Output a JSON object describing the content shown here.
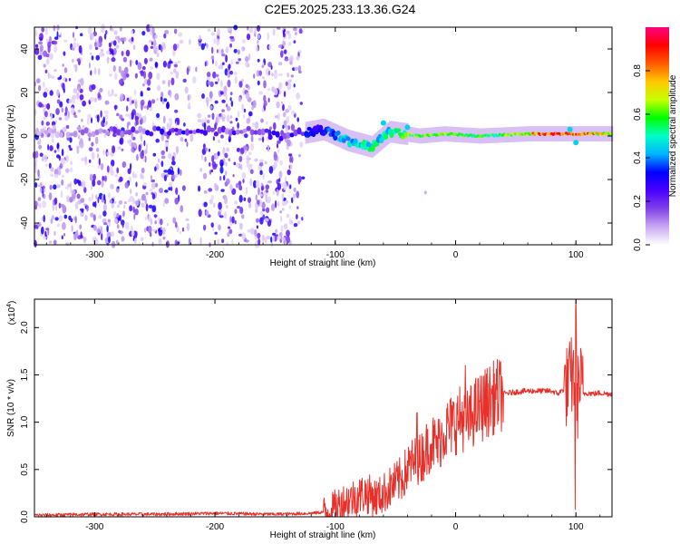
{
  "title": "C2E5.2025.233.13.36.G24",
  "chart_data": [
    {
      "type": "heatmap",
      "name": "spectrogram",
      "xlabel": "Height of straight line (km)",
      "ylabel": "Frequency (Hz)",
      "xlim": [
        -350,
        130
      ],
      "ylim": [
        -50,
        50
      ],
      "xticks": [
        -300,
        -200,
        -100,
        0,
        100
      ],
      "xtick_labels": [
        "-300",
        "-200",
        "-100",
        "0",
        "100"
      ],
      "yticks": [
        -40,
        -20,
        0,
        20,
        40
      ],
      "ytick_labels": [
        "-40",
        "-20",
        "0",
        "20",
        "40"
      ],
      "colorbar": {
        "label": "Normalized spectral amplitude",
        "range": [
          0,
          1
        ],
        "ticks": [
          0.0,
          0.2,
          0.4,
          0.6,
          0.8
        ],
        "tick_labels": [
          "0.0",
          "0.2",
          "0.4",
          "0.6",
          "0.8"
        ],
        "colormap": [
          "#ffffff",
          "#c9a8f2",
          "#7f3fe8",
          "#4a00ff",
          "#0000ff",
          "#00b4ff",
          "#00ffc8",
          "#00ff00",
          "#c8ff00",
          "#ffc800",
          "#ff5a00",
          "#ff0000",
          "#ff0080"
        ]
      },
      "noise_region_x": [
        -350,
        -125
      ],
      "gap_region_x": [
        -230,
        -210
      ],
      "ridge": [
        {
          "x": -350,
          "freq": 2,
          "amp": 0.05
        },
        {
          "x": -230,
          "freq": 2,
          "amp": 0.25
        },
        {
          "x": -200,
          "freq": 2,
          "amp": 0.22
        },
        {
          "x": -170,
          "freq": 2,
          "amp": 0.2
        },
        {
          "x": -140,
          "freq": 0,
          "amp": 0.28
        },
        {
          "x": -110,
          "freq": 3,
          "amp": 0.32
        },
        {
          "x": -90,
          "freq": -2,
          "amp": 0.45
        },
        {
          "x": -70,
          "freq": -5,
          "amp": 0.5
        },
        {
          "x": -55,
          "freq": 2,
          "amp": 0.48
        },
        {
          "x": -30,
          "freq": 0,
          "amp": 0.65
        },
        {
          "x": -10,
          "freq": 1,
          "amp": 0.62
        },
        {
          "x": 20,
          "freq": 0,
          "amp": 0.55
        },
        {
          "x": 60,
          "freq": 1,
          "amp": 0.7
        },
        {
          "x": 80,
          "freq": 1,
          "amp": 0.95
        },
        {
          "x": 100,
          "freq": 1,
          "amp": 0.85
        },
        {
          "x": 130,
          "freq": 1,
          "amp": 0.65
        }
      ]
    },
    {
      "type": "line",
      "name": "snr",
      "xlabel": "Height of straight line (km)",
      "ylabel": "SNR (10 * v/v)",
      "y_multiplier": "(x10",
      "y_multiplier_exp": "4",
      "y_multiplier_close": ")",
      "xlim": [
        -350,
        130
      ],
      "ylim": [
        0,
        2.3
      ],
      "xticks": [
        -300,
        -200,
        -100,
        0,
        100
      ],
      "xtick_labels": [
        "-300",
        "-200",
        "-100",
        "0",
        "100"
      ],
      "yticks": [
        0.0,
        0.5,
        1.0,
        1.5,
        2.0
      ],
      "ytick_labels": [
        "0.0",
        "0.5",
        "1.0",
        "1.5",
        "2.0"
      ],
      "series": [
        {
          "color": "#e8302a",
          "x": [
            -350,
            -300,
            -250,
            -200,
            -150,
            -120,
            -105,
            -95,
            -85,
            -75,
            -65,
            -55,
            -45,
            -38,
            -30,
            -25,
            -20,
            -15,
            -10,
            -5,
            0,
            5,
            10,
            15,
            20,
            25,
            30,
            35,
            40,
            50,
            60,
            70,
            80,
            85,
            90,
            94,
            97,
            99,
            100,
            101,
            103,
            106,
            110,
            115,
            120,
            125,
            130
          ],
          "y": [
            0.01,
            0.02,
            0.02,
            0.03,
            0.02,
            0.03,
            0.05,
            0.15,
            0.2,
            0.25,
            0.2,
            0.3,
            0.4,
            0.55,
            0.6,
            0.7,
            0.8,
            0.75,
            0.9,
            0.95,
            1.0,
            1.05,
            1.0,
            1.1,
            1.15,
            1.2,
            1.25,
            1.28,
            1.3,
            1.32,
            1.33,
            1.33,
            1.33,
            1.3,
            1.35,
            1.4,
            1.5,
            1.45,
            1.9,
            1.2,
            1.45,
            1.3,
            1.31,
            1.3,
            1.31,
            1.3,
            1.3
          ]
        }
      ]
    }
  ]
}
